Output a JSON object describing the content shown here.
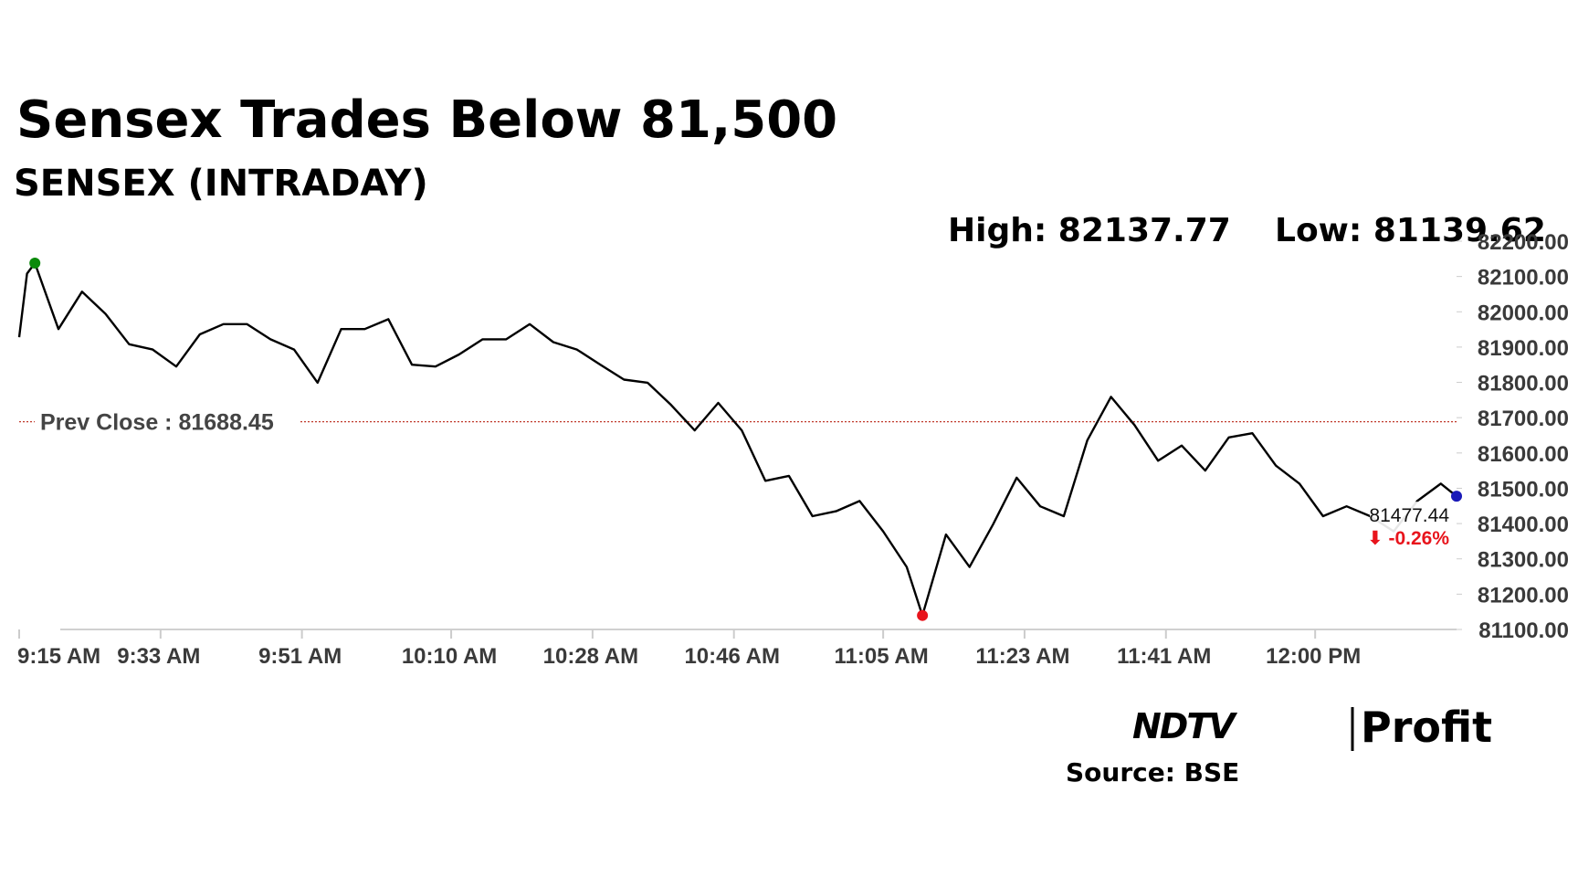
{
  "chart_data": {
    "type": "line",
    "title": "Sensex Trades Below 81,500",
    "subtitle": "SENSEX (INTRADAY)",
    "high_label": "High: 82137.77",
    "high": 82137.77,
    "low_label": "Low: 81139.62",
    "low": 81139.62,
    "prev_close_label": "Prev Close : 81688.45",
    "prev_close": 81688.45,
    "last_label": "81477.44",
    "change_label": "⬇ -0.26%",
    "source": "Source: BSE",
    "logo": [
      "NDTV",
      "Profit"
    ],
    "x": [
      "9:15 AM",
      "9:16 AM",
      "9:17 AM",
      "9:20 AM",
      "9:23 AM",
      "9:26 AM",
      "9:29 AM",
      "9:32 AM",
      "9:35 AM",
      "9:38 AM",
      "9:41 AM",
      "9:44 AM",
      "9:47 AM",
      "9:50 AM",
      "9:53 AM",
      "9:56 AM",
      "9:59 AM",
      "10:02 AM",
      "10:05 AM",
      "10:08 AM",
      "10:11 AM",
      "10:14 AM",
      "10:17 AM",
      "10:20 AM",
      "10:23 AM",
      "10:26 AM",
      "10:29 AM",
      "10:32 AM",
      "10:35 AM",
      "10:38 AM",
      "10:41 AM",
      "10:44 AM",
      "10:47 AM",
      "10:50 AM",
      "10:53 AM",
      "10:56 AM",
      "10:59 AM",
      "11:02 AM",
      "11:05 AM",
      "11:08 AM",
      "11:10 AM",
      "11:13 AM",
      "11:16 AM",
      "11:19 AM",
      "11:22 AM",
      "11:25 AM",
      "11:28 AM",
      "11:31 AM",
      "11:34 AM",
      "11:37 AM",
      "11:40 AM",
      "11:43 AM",
      "11:46 AM",
      "11:49 AM",
      "11:52 AM",
      "11:55 AM",
      "11:58 AM",
      "12:01 PM",
      "12:04 PM",
      "12:07 PM",
      "12:10 PM",
      "12:13 PM",
      "12:16 PM",
      "12:18 PM"
    ],
    "series": [
      {
        "name": "SENSEX",
        "color": "#000000",
        "values": [
          81928,
          82108,
          82137.77,
          81951,
          82057,
          81994,
          81908,
          81893,
          81845,
          81936,
          81965,
          81965,
          81922,
          81893,
          81799,
          81951,
          81951,
          81979,
          81850,
          81845,
          81879,
          81922,
          81922,
          81965,
          81914,
          81893,
          81850,
          81808,
          81799,
          81736,
          81664,
          81742,
          81664,
          81521,
          81535,
          81421,
          81435,
          81464,
          81378,
          81277,
          81139.62,
          81369,
          81277,
          81398,
          81530,
          81449,
          81421,
          81636,
          81759,
          81679,
          81578,
          81621,
          81550,
          81644,
          81656,
          81564,
          81513,
          81421,
          81449,
          81421,
          81378,
          81464,
          81513,
          81477.44
        ]
      }
    ],
    "high_color": "#0a8a0a",
    "low_color": "#e8141c",
    "last_color": "#1a1ab8",
    "prev_close_color": "#c0392b",
    "change_color": "#e8141c",
    "xlim": [
      "9:15 AM",
      "12:18 PM"
    ],
    "xticks": [
      "9:15 AM",
      "9:33 AM",
      "9:51 AM",
      "10:10 AM",
      "10:28 AM",
      "10:46 AM",
      "11:05 AM",
      "11:23 AM",
      "11:41 AM",
      "12:00 PM"
    ],
    "ylim": [
      81100,
      82200
    ],
    "yticks": [
      {
        "value": 81100,
        "label": "81100.00"
      },
      {
        "value": 81200,
        "label": "81200.00"
      },
      {
        "value": 81300,
        "label": "81300.00"
      },
      {
        "value": 81400,
        "label": "81400.00"
      },
      {
        "value": 81500,
        "label": "81500.00"
      },
      {
        "value": 81600,
        "label": "81600.00"
      },
      {
        "value": 81700,
        "label": "81700.00"
      },
      {
        "value": 81800,
        "label": "81800.00"
      },
      {
        "value": 81900,
        "label": "81900.00"
      },
      {
        "value": 82000,
        "label": "82000.00"
      },
      {
        "value": 82100,
        "label": "82100.00"
      },
      {
        "value": 82200,
        "label": "82200.00"
      }
    ]
  }
}
